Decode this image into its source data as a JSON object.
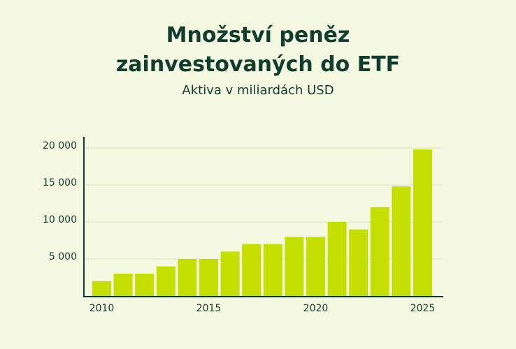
{
  "title_line1": "Množství peněz",
  "title_line2": "zainvestovaných do ETF",
  "subtitle": "Aktiva v miliardách USD",
  "colors": {
    "background": "#f5f9e1",
    "bar": "#c5df00",
    "text": "#0f3d2e",
    "axis": "#0f3d2e",
    "grid": "#d9e4c4"
  },
  "chart_data": {
    "type": "bar",
    "title": "Množství peněz zainvestovaných do ETF",
    "subtitle": "Aktiva v miliardách USD",
    "x": [
      2010,
      2011,
      2012,
      2013,
      2014,
      2015,
      2016,
      2017,
      2018,
      2019,
      2020,
      2021,
      2022,
      2023,
      2024,
      2025
    ],
    "values": [
      2000,
      3000,
      3000,
      4000,
      5000,
      5000,
      6000,
      7000,
      7000,
      8000,
      8000,
      10000,
      9000,
      12000,
      14800,
      19800
    ],
    "x_tick_labels": [
      "2010",
      "2015",
      "2020",
      "2025"
    ],
    "y_ticks": [
      5000,
      10000,
      15000,
      20000
    ],
    "y_tick_labels": [
      "5 000",
      "10 000",
      "15 000",
      "20 000"
    ],
    "ylim": [
      0,
      20000
    ],
    "grid": true,
    "legend": false
  }
}
